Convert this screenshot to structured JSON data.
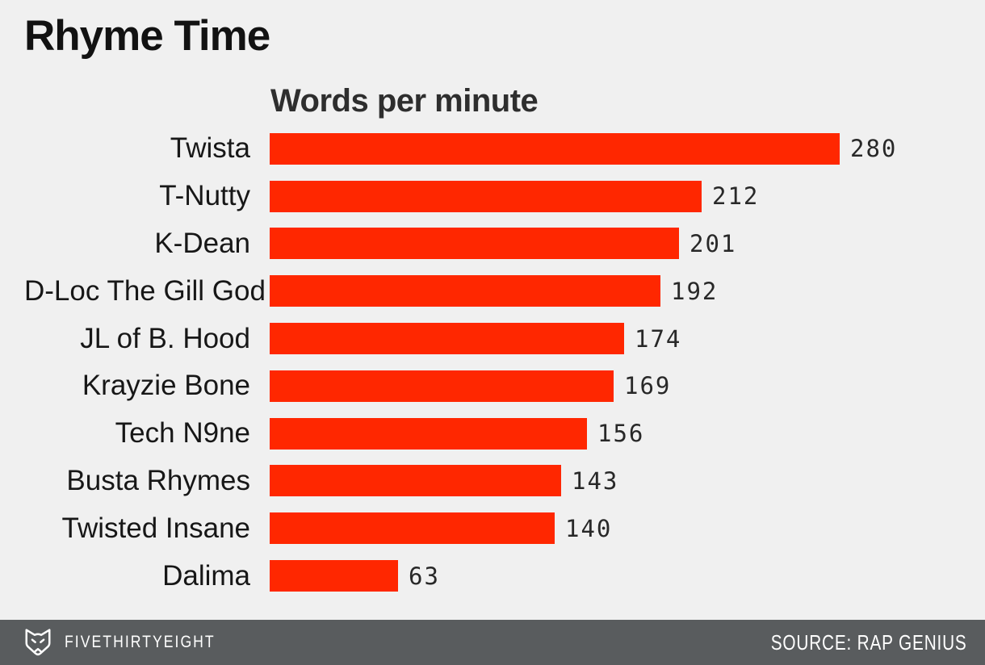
{
  "page": {
    "title": "Rhyme Time",
    "subtitle": "Words per minute"
  },
  "chart_data": {
    "type": "bar",
    "orientation": "horizontal",
    "title": "Rhyme Time",
    "value_axis_label": "Words per minute",
    "categories": [
      "Twista",
      "T-Nutty",
      "K-Dean",
      "D-Loc The Gill God",
      "JL of B. Hood",
      "Krayzie Bone",
      "Tech N9ne",
      "Busta Rhymes",
      "Twisted Insane",
      "Dalima"
    ],
    "values": [
      280,
      212,
      201,
      192,
      174,
      169,
      156,
      143,
      140,
      63
    ],
    "xlim": [
      0,
      280
    ],
    "grid": false,
    "legend": "none",
    "value_labels_shown": true,
    "bar_color": "#ff2700"
  },
  "footer": {
    "brand_label": "FIVETHIRTYEIGHT",
    "source_label": "SOURCE: RAP GENIUS",
    "logo": "fivethirtyeight-fox-icon"
  },
  "colors": {
    "background": "#f0f0f0",
    "bar": "#ff2700",
    "footer_background": "#595c5e",
    "footer_text": "#ffffff",
    "title_text": "#121212",
    "subtitle_text": "#2e2e2e",
    "category_text": "#171717",
    "value_text": "#282828"
  }
}
